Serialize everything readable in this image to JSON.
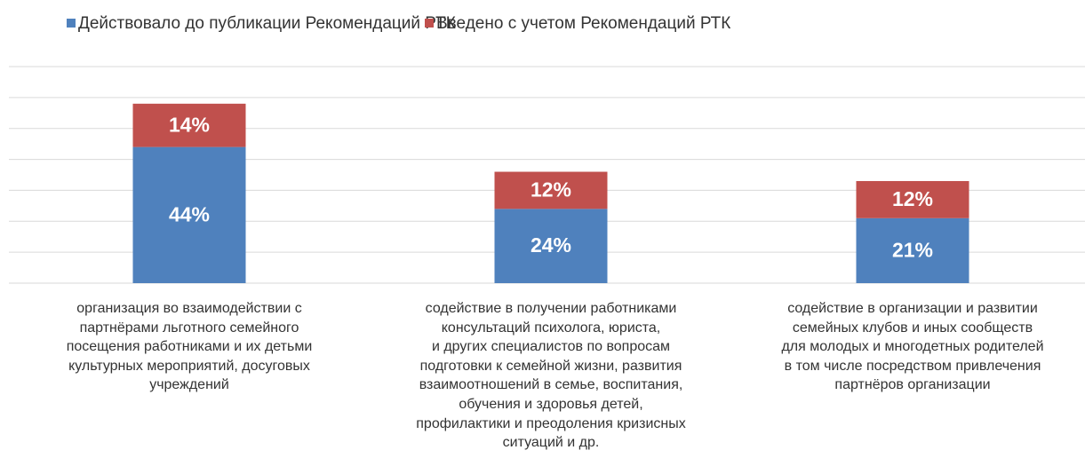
{
  "chart_data": {
    "type": "stacked-bar",
    "categories": [
      "организация во взаимодействии с\nпартнёрами льготного семейного\nпосещения работниками и их детьми\nкультурных мероприятий, досуговых\nучреждений",
      "содействие в получении работниками\nконсультаций психолога, юриста,\nи других специалистов по вопросам\nподготовки к семейной жизни, развития\nвзаимоотношений в семье, воспитания,\nобучения и здоровья детей,\nпрофилактики и преодоления кризисных\nситуаций и др.",
      "содействие в организации и развитии\nсемейных клубов и иных сообществ\nдля молодых и многодетных родителей\nв том числе посредством привлечения\nпартнёров организации"
    ],
    "series": [
      {
        "name": "Действовало до публикации Рекомендаций РТК",
        "color": "#4f81bd",
        "values": [
          44,
          24,
          21
        ],
        "value_labels": [
          "44%",
          "24%",
          "21%"
        ]
      },
      {
        "name": "Введено с учетом Рекомендаций РТК",
        "color": "#c0504d",
        "values": [
          14,
          12,
          12
        ],
        "value_labels": [
          "14%",
          "12%",
          "12%"
        ]
      }
    ],
    "ylim": [
      0,
      70
    ],
    "yticks": [
      0,
      10,
      20,
      30,
      40,
      50,
      60,
      70
    ],
    "grid": true,
    "legend": "top"
  }
}
